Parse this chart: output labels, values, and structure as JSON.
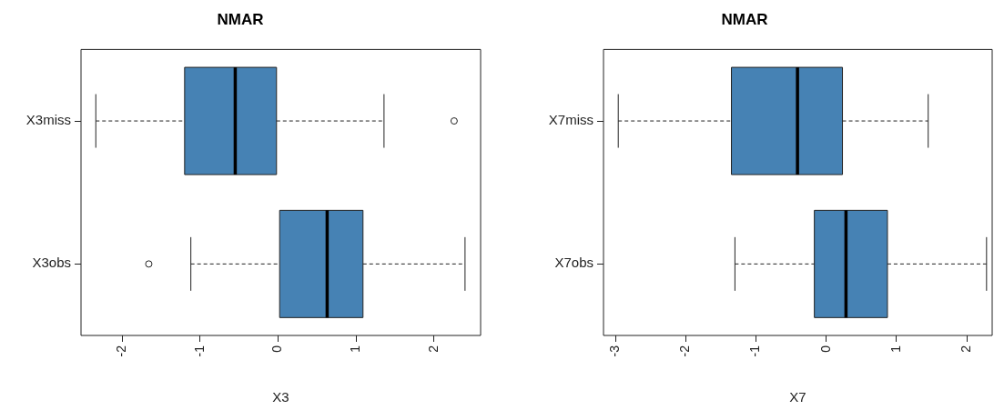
{
  "chart_data": [
    {
      "type": "box",
      "title": "NMAR",
      "xlabel": "X3",
      "orientation": "horizontal",
      "categories": [
        "X3miss",
        "X3obs"
      ],
      "xlim": [
        -2.53,
        2.6
      ],
      "xticks": [
        -2,
        -1,
        0,
        1,
        2
      ],
      "series": [
        {
          "color": "#4682b4",
          "boxes": [
            {
              "low": -2.34,
              "q1": -1.2,
              "median": -0.55,
              "q3": -0.02,
              "high": 1.36,
              "outliers": [
                2.26
              ]
            },
            {
              "low": -1.12,
              "q1": 0.02,
              "median": 0.63,
              "q3": 1.09,
              "high": 2.4,
              "outliers": [
                -1.66
              ]
            }
          ]
        }
      ]
    },
    {
      "type": "box",
      "title": "NMAR",
      "xlabel": "X7",
      "orientation": "horizontal",
      "categories": [
        "X7miss",
        "X7obs"
      ],
      "xlim": [
        -3.17,
        2.36
      ],
      "xticks": [
        -3,
        -2,
        -1,
        0,
        1,
        2
      ],
      "series": [
        {
          "color": "#4682b4",
          "boxes": [
            {
              "low": -2.96,
              "q1": -1.35,
              "median": -0.41,
              "q3": 0.23,
              "high": 1.45
            },
            {
              "low": -1.3,
              "q1": -0.17,
              "median": 0.28,
              "q3": 0.87,
              "high": 2.28
            }
          ]
        }
      ]
    }
  ]
}
